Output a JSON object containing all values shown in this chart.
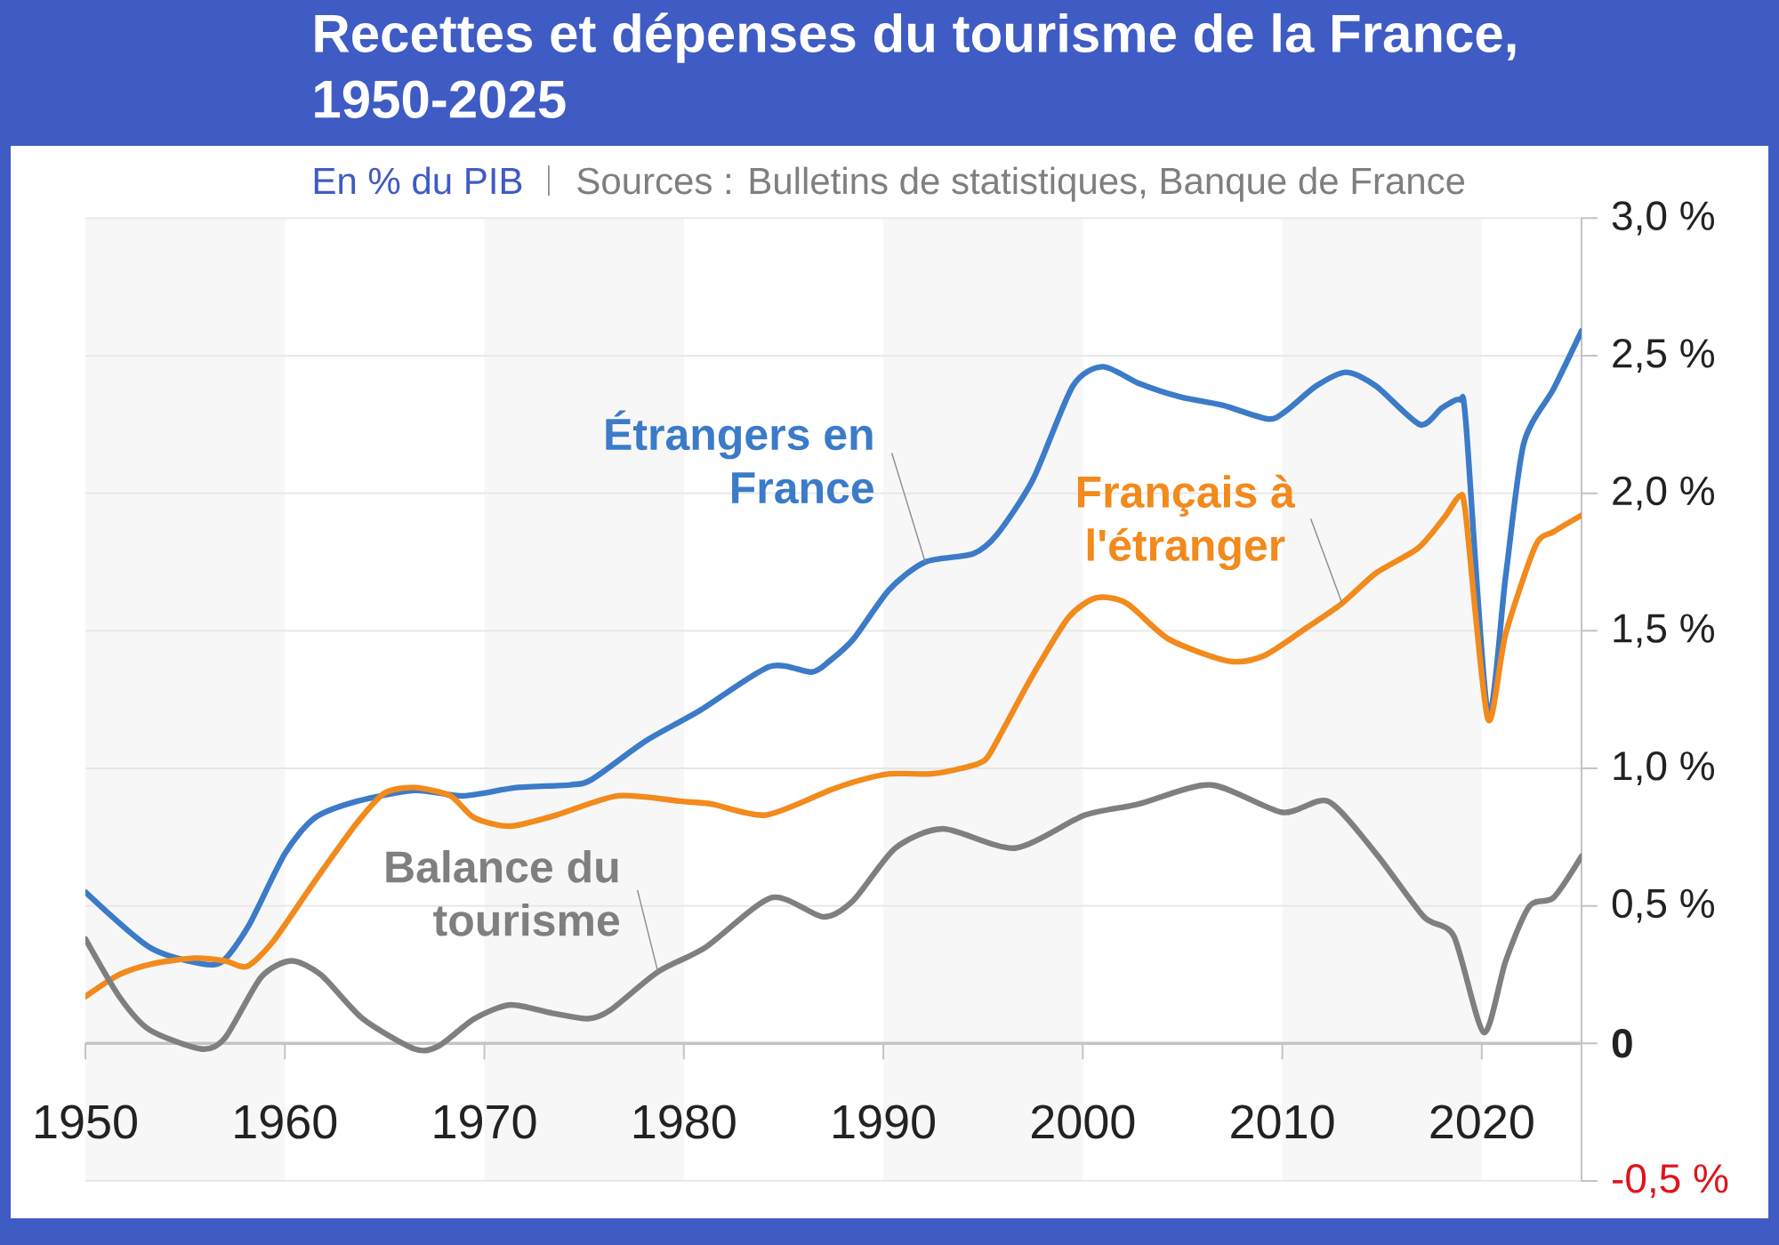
{
  "chart_data": {
    "type": "line",
    "title": "Recettes et dépenses du tourisme de la France, 1950-2025",
    "subtitle": "En % du PIB",
    "annotations": [
      "Sources : Bulletins de statistiques, Banque de France"
    ],
    "xlim": [
      1950,
      2025
    ],
    "xticks": [
      1950,
      1960,
      1970,
      1980,
      1990,
      2000,
      2010,
      2020
    ],
    "ylim": [
      -0.5,
      3.0
    ],
    "yticks": [
      {
        "value": 3.0,
        "label": "3,0 %"
      },
      {
        "value": 2.5,
        "label": "2,5 %"
      },
      {
        "value": 2.0,
        "label": "2,0 %"
      },
      {
        "value": 1.5,
        "label": "1,5 %"
      },
      {
        "value": 1.0,
        "label": "1,0 %"
      },
      {
        "value": 0.5,
        "label": "0,5 %"
      },
      0,
      {
        "value": -0.5,
        "label": "-0,5 %"
      }
    ],
    "grid": "y",
    "bands": [
      {
        "axis": "x",
        "from": 1950,
        "to": 1960,
        "color": "#f7f7f7"
      },
      {
        "axis": "x",
        "from": 1970,
        "to": 1980,
        "color": "#f7f7f7"
      },
      {
        "axis": "x",
        "from": 1990,
        "to": 2000,
        "color": "#f7f7f7"
      },
      {
        "axis": "x",
        "from": 2010,
        "to": 2020,
        "color": "#f7f7f7"
      }
    ],
    "series": [
      {
        "name": "Étrangers en France",
        "color": "#3b7bc8",
        "x": [
          1950,
          1953.2,
          1955.8,
          1956.9,
          1958.2,
          1960,
          1961.5,
          1963.6,
          1966.5,
          1968.9,
          1971.6,
          1974.3,
          1975.4,
          1978.1,
          1980.8,
          1984.3,
          1986.4,
          1987.3,
          1988.5,
          1990.3,
          1992.1,
          1994.5,
          1995.7,
          1997.5,
          1999.5,
          2001.0,
          2002.8,
          2004.9,
          2007.0,
          2009.3,
          2010.2,
          2011.7,
          2013.2,
          2014.7,
          2016.9,
          2018.0,
          2018.9,
          2019.2,
          2020.3,
          2021.2,
          2022.1,
          2023.6,
          2025
        ],
        "values": [
          0.55,
          0.35,
          0.29,
          0.3,
          0.43,
          0.69,
          0.82,
          0.88,
          0.92,
          0.9,
          0.93,
          0.94,
          0.96,
          1.1,
          1.21,
          1.37,
          1.35,
          1.39,
          1.47,
          1.65,
          1.75,
          1.78,
          1.85,
          2.05,
          2.39,
          2.46,
          2.4,
          2.35,
          2.32,
          2.27,
          2.3,
          2.39,
          2.44,
          2.39,
          2.25,
          2.31,
          2.34,
          2.26,
          1.2,
          1.7,
          2.18,
          2.38,
          2.59
        ]
      },
      {
        "name": "Français à l'étranger",
        "color": "#f28a1c",
        "x": [
          1950,
          1951.7,
          1953.4,
          1955.5,
          1957.0,
          1958.1,
          1959.4,
          1961.5,
          1963.6,
          1965.0,
          1966.5,
          1968.3,
          1969.5,
          1971.3,
          1973.6,
          1976.7,
          1979.9,
          1981.4,
          1984.1,
          1987.3,
          1988.5,
          1990.3,
          1992.4,
          1993.9,
          1995.1,
          1996.0,
          1997.5,
          1999.3,
          2000.7,
          2002.2,
          2004.3,
          2007.3,
          2009.1,
          2011.2,
          2013.0,
          2014.7,
          2016.8,
          2018.1,
          2018.9,
          2019.2,
          2020.3,
          2021.2,
          2022.7,
          2023.6,
          2025
        ],
        "values": [
          0.17,
          0.25,
          0.29,
          0.31,
          0.3,
          0.28,
          0.37,
          0.59,
          0.8,
          0.91,
          0.93,
          0.9,
          0.82,
          0.79,
          0.83,
          0.9,
          0.88,
          0.87,
          0.83,
          0.92,
          0.95,
          0.98,
          0.98,
          1.0,
          1.03,
          1.14,
          1.34,
          1.55,
          1.62,
          1.6,
          1.47,
          1.39,
          1.41,
          1.51,
          1.6,
          1.71,
          1.8,
          1.91,
          1.99,
          1.92,
          1.18,
          1.49,
          1.81,
          1.86,
          1.92
        ]
      },
      {
        "name": "Balance du tourisme",
        "color": "#7f7f7f",
        "x": [
          1950,
          1951.7,
          1953.2,
          1955.8,
          1957.0,
          1958.8,
          1960.3,
          1961.8,
          1963.9,
          1966.5,
          1967.7,
          1969.5,
          1971.3,
          1973.4,
          1975.2,
          1976.3,
          1978.7,
          1981.1,
          1984.4,
          1987.0,
          1988.5,
          1990.6,
          1993.0,
          1996.6,
          2000.1,
          2002.8,
          2006.4,
          2010.0,
          2012.3,
          2014.7,
          2017.1,
          2018.6,
          2020.1,
          2021.2,
          2022.4,
          2023.6,
          2025
        ],
        "values": [
          0.38,
          0.17,
          0.05,
          -0.02,
          0.02,
          0.24,
          0.3,
          0.25,
          0.09,
          -0.02,
          -0.01,
          0.09,
          0.14,
          0.11,
          0.09,
          0.12,
          0.26,
          0.35,
          0.53,
          0.46,
          0.52,
          0.71,
          0.78,
          0.71,
          0.83,
          0.87,
          0.94,
          0.84,
          0.88,
          0.69,
          0.46,
          0.39,
          0.04,
          0.3,
          0.5,
          0.53,
          0.68
        ]
      }
    ]
  }
}
